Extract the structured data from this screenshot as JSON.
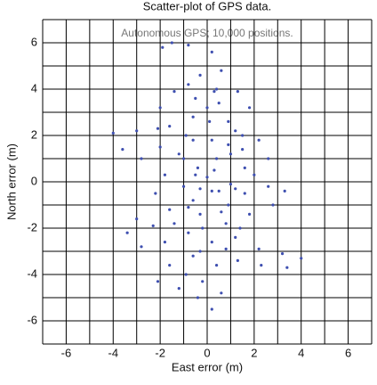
{
  "chart_data": {
    "type": "scatter",
    "title": "Scatter-plot of GPS data.",
    "annotation": "Autonomous GPS; 10,000 positions.",
    "xlabel": "East error (m)",
    "ylabel": "North error (m)",
    "xlim": [
      -7,
      7
    ],
    "ylim": [
      -7,
      7
    ],
    "xticks": [
      -6,
      -4,
      -2,
      0,
      2,
      4,
      6
    ],
    "yticks": [
      -6,
      -4,
      -2,
      0,
      2,
      4,
      6
    ],
    "xminorticks": [
      -7,
      -5,
      -3,
      -1,
      1,
      3,
      5,
      7
    ],
    "yminorticks": [
      -7,
      -5,
      -3,
      -1,
      1,
      3,
      5,
      7
    ],
    "grid": true,
    "color": "#3e4fb0",
    "x": [
      -1.9,
      -1.5,
      -0.8,
      0.2,
      0.6,
      0.4,
      -0.5,
      -1.4,
      -2.0,
      -1.6,
      -0.6,
      0.5,
      1.3,
      1.8,
      1.2,
      0.2,
      -0.9,
      -2.1,
      -3.0,
      -4.0,
      -3.6,
      -2.8,
      -2.0,
      -1.2,
      -0.4,
      0.4,
      1.5,
      2.2,
      2.6,
      2.0,
      1.0,
      0.0,
      -1.0,
      -1.8,
      -2.2,
      -1.6,
      -0.6,
      0.5,
      1.6,
      2.6,
      3.3,
      2.8,
      1.8,
      0.8,
      -0.3,
      -1.4,
      -2.3,
      -3.0,
      -3.4,
      -2.8,
      -1.8,
      -0.8,
      0.2,
      1.2,
      2.2,
      3.2,
      4.0,
      3.4,
      2.3,
      1.3,
      0.4,
      -0.6,
      -1.6,
      -2.1,
      -1.2,
      -0.2,
      0.6,
      0.2,
      -0.4,
      -0.9,
      -0.3,
      0.8,
      1.4,
      0.9,
      0.2,
      -0.5,
      -1.0,
      -0.6,
      0.1,
      0.9,
      1.5,
      1.0,
      0.3,
      -0.3,
      -0.8,
      -0.2,
      0.6,
      1.2,
      1.6,
      0.9,
      0.0,
      -0.8,
      -0.3,
      0.3
    ],
    "y": [
      5.8,
      6.0,
      5.9,
      5.6,
      4.8,
      4.0,
      3.6,
      3.9,
      3.2,
      2.4,
      2.8,
      3.4,
      3.9,
      3.2,
      2.2,
      1.8,
      2.0,
      2.3,
      2.2,
      2.1,
      1.4,
      1.0,
      1.5,
      1.2,
      0.6,
      1.0,
      1.4,
      1.8,
      1.0,
      0.3,
      -0.1,
      0.2,
      -0.2,
      0.3,
      -0.5,
      -1.2,
      -0.8,
      -0.4,
      -0.5,
      -0.2,
      -0.4,
      -1.0,
      -1.4,
      -1.8,
      -1.4,
      -1.8,
      -1.9,
      -1.6,
      -2.2,
      -2.8,
      -2.6,
      -2.2,
      -2.6,
      -2.4,
      -2.9,
      -3.1,
      -3.3,
      -3.7,
      -3.6,
      -3.4,
      -3.6,
      -3.2,
      -3.6,
      -4.3,
      -4.6,
      -4.3,
      -4.8,
      -5.5,
      -5.0,
      -4.0,
      -3.0,
      -2.9,
      -2.0,
      -1.0,
      -0.4,
      0.3,
      1.0,
      1.8,
      2.6,
      2.6,
      2.0,
      1.2,
      0.5,
      -0.3,
      -1.1,
      -2.0,
      -1.3,
      -0.3,
      0.6,
      1.6,
      3.2,
      4.2,
      4.6,
      3.9
    ]
  }
}
